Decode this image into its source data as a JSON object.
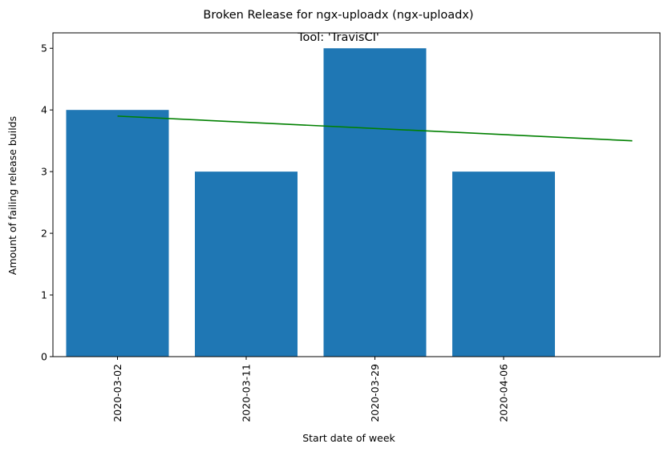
{
  "chart_data": {
    "type": "bar",
    "title": "Broken Release for ngx-uploadx (ngx-uploadx)",
    "subtitle": "Tool: 'TravisCI'",
    "xlabel": "Start date of week",
    "ylabel": "Amount of failing release builds",
    "categories": [
      "2020-03-02",
      "2020-03-11",
      "2020-03-29",
      "2020-04-06"
    ],
    "values": [
      4,
      3,
      5,
      3
    ],
    "bar_color": "#1f77b4",
    "trend": {
      "color": "#008000",
      "x_start_index": 0,
      "x_end_index": 4,
      "y_start": 3.9,
      "y_end": 3.5
    },
    "ylim": [
      0,
      5.25
    ],
    "yticks": [
      0,
      1,
      2,
      3,
      4,
      5
    ],
    "grid": false,
    "legend": "none"
  }
}
